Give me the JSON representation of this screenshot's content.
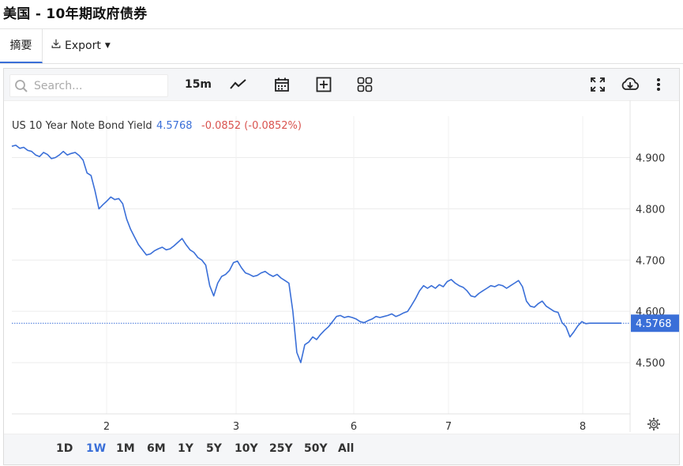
{
  "page": {
    "title": "美国 - 10年期政府债券"
  },
  "tabs": {
    "summary": "摘要",
    "export": "Export"
  },
  "toolbar": {
    "search_placeholder": "Search...",
    "interval": "15m",
    "icons": [
      "search-icon",
      "line-chart-icon",
      "calendar-icon",
      "add-indicator-icon",
      "layout-grid-icon",
      "fullscreen-icon",
      "cloud-download-icon",
      "more-vertical-icon"
    ]
  },
  "legend": {
    "name": "US 10 Year Note Bond Yield",
    "value": "4.5768",
    "change": "-0.0852 (-0.0852%)"
  },
  "ranges": [
    "1D",
    "1W",
    "1M",
    "6M",
    "1Y",
    "5Y",
    "10Y",
    "25Y",
    "50Y",
    "All"
  ],
  "active_range": "1W",
  "colors": {
    "line": "#3a6fd8",
    "negative": "#d9534f",
    "accent": "#3a6fd8"
  },
  "chart_data": {
    "type": "line",
    "title": "",
    "xlabel": "",
    "ylabel": "",
    "x_ticks": [
      "2",
      "3",
      "6",
      "7",
      "8"
    ],
    "y_ticks": [
      "4.900",
      "4.800",
      "4.700",
      "4.600",
      "4.500"
    ],
    "ylim": [
      4.4,
      4.95
    ],
    "current_value": "4.5768",
    "grid": true,
    "series": [
      {
        "name": "US 10 Year Note Bond Yield",
        "x": [
          0,
          0.5,
          1,
          1.5,
          2,
          2.5,
          3,
          3.5,
          4,
          4.5,
          5,
          5.5,
          6,
          6.5,
          7,
          7.5,
          8,
          8.5,
          9,
          9.5,
          10,
          10.5,
          11,
          11.5,
          12,
          12.5,
          13,
          13.5,
          14,
          14.5,
          15,
          15.5,
          16,
          16.5,
          17,
          17.5,
          18,
          18.5,
          19,
          19.5,
          20,
          20.5,
          21,
          21.5,
          22,
          22.5,
          23,
          23.5,
          24,
          24.5,
          25,
          25.5,
          26,
          26.5,
          27,
          27.5,
          28,
          28.5,
          29,
          29.5,
          30,
          30.5,
          31,
          31.5,
          32,
          32.5,
          33,
          33.5,
          34,
          34.5,
          35,
          35.5,
          36,
          36.5,
          37,
          37.5,
          38,
          38.5,
          39,
          39.5,
          40,
          40.5,
          41,
          41.5,
          42,
          42.5,
          43,
          43.5,
          44,
          44.5,
          45,
          45.5,
          46,
          46.5,
          47,
          47.5,
          48,
          48.5,
          49,
          49.5,
          50,
          50.5,
          51,
          51.5,
          52,
          52.5,
          53,
          53.5,
          54,
          54.5,
          55,
          55.5,
          56,
          56.5,
          57,
          57.5,
          58,
          58.5,
          59,
          59.5,
          60,
          60.5,
          61,
          61.5,
          62,
          62.5,
          63,
          63.5,
          64,
          64.5,
          65,
          65.5,
          66,
          66.5,
          67,
          67.5,
          68,
          68.5,
          69,
          69.5,
          70,
          70.5,
          71,
          71.5,
          72,
          72.5,
          73,
          73.5,
          74,
          74.5,
          75,
          75.5,
          76,
          76.5,
          77
        ],
        "values": [
          4.922,
          4.924,
          4.918,
          4.92,
          4.914,
          4.912,
          4.905,
          4.902,
          4.91,
          4.906,
          4.898,
          4.9,
          4.905,
          4.912,
          4.905,
          4.908,
          4.91,
          4.904,
          4.895,
          4.87,
          4.865,
          4.835,
          4.8,
          4.808,
          4.815,
          4.823,
          4.818,
          4.82,
          4.81,
          4.78,
          4.76,
          4.745,
          4.73,
          4.72,
          4.71,
          4.712,
          4.718,
          4.722,
          4.725,
          4.72,
          4.722,
          4.728,
          4.735,
          4.742,
          4.73,
          4.72,
          4.715,
          4.705,
          4.7,
          4.69,
          4.65,
          4.63,
          4.655,
          4.668,
          4.672,
          4.68,
          4.695,
          4.698,
          4.685,
          4.675,
          4.672,
          4.668,
          4.67,
          4.675,
          4.678,
          4.672,
          4.668,
          4.672,
          4.665,
          4.66,
          4.655,
          4.6,
          4.52,
          4.5,
          4.535,
          4.54,
          4.55,
          4.545,
          4.555,
          4.563,
          4.57,
          4.58,
          4.59,
          4.592,
          4.588,
          4.59,
          4.588,
          4.585,
          4.58,
          4.578,
          4.582,
          4.585,
          4.59,
          4.588,
          4.59,
          4.592,
          4.595,
          4.59,
          4.593,
          4.597,
          4.6,
          4.612,
          4.625,
          4.64,
          4.65,
          4.645,
          4.65,
          4.645,
          4.652,
          4.648,
          4.658,
          4.662,
          4.655,
          4.65,
          4.647,
          4.64,
          4.63,
          4.628,
          4.635,
          4.64,
          4.645,
          4.65,
          4.648,
          4.652,
          4.65,
          4.645,
          4.65,
          4.655,
          4.66,
          4.648,
          4.62,
          4.61,
          4.608,
          4.615,
          4.62,
          4.61,
          4.605,
          4.6,
          4.598,
          4.578,
          4.57,
          4.55,
          4.56,
          4.572,
          4.58,
          4.576,
          4.5768,
          4.5768,
          4.5768,
          4.5768,
          4.5768,
          4.5768,
          4.5768,
          4.5768,
          4.5768
        ]
      }
    ]
  }
}
